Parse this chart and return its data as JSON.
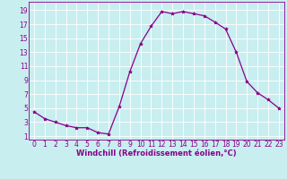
{
  "x": [
    0,
    1,
    2,
    3,
    4,
    5,
    6,
    7,
    8,
    9,
    10,
    11,
    12,
    13,
    14,
    15,
    16,
    17,
    18,
    19,
    20,
    21,
    22,
    23
  ],
  "y": [
    4.5,
    3.5,
    3.0,
    2.5,
    2.2,
    2.2,
    1.5,
    1.3,
    5.2,
    10.2,
    14.2,
    16.7,
    18.8,
    18.5,
    18.8,
    18.5,
    18.2,
    17.3,
    16.3,
    13.0,
    8.8,
    7.2,
    6.2,
    5.0
  ],
  "line_color": "#880088",
  "marker": "*",
  "marker_color": "#880088",
  "bg_color": "#c8eef0",
  "grid_color": "#b0d8dc",
  "xlabel": "Windchill (Refroidissement éolien,°C)",
  "xlabel_color": "#880088",
  "tick_color": "#880088",
  "yticks": [
    1,
    3,
    5,
    7,
    9,
    11,
    13,
    15,
    17,
    19
  ],
  "xticks": [
    0,
    1,
    2,
    3,
    4,
    5,
    6,
    7,
    8,
    9,
    10,
    11,
    12,
    13,
    14,
    15,
    16,
    17,
    18,
    19,
    20,
    21,
    22,
    23
  ],
  "ylim": [
    0.5,
    20.2
  ],
  "xlim": [
    -0.5,
    23.5
  ],
  "xlabel_fontsize": 6.0,
  "tick_fontsize": 5.5,
  "linewidth": 0.9,
  "markersize": 2.8
}
